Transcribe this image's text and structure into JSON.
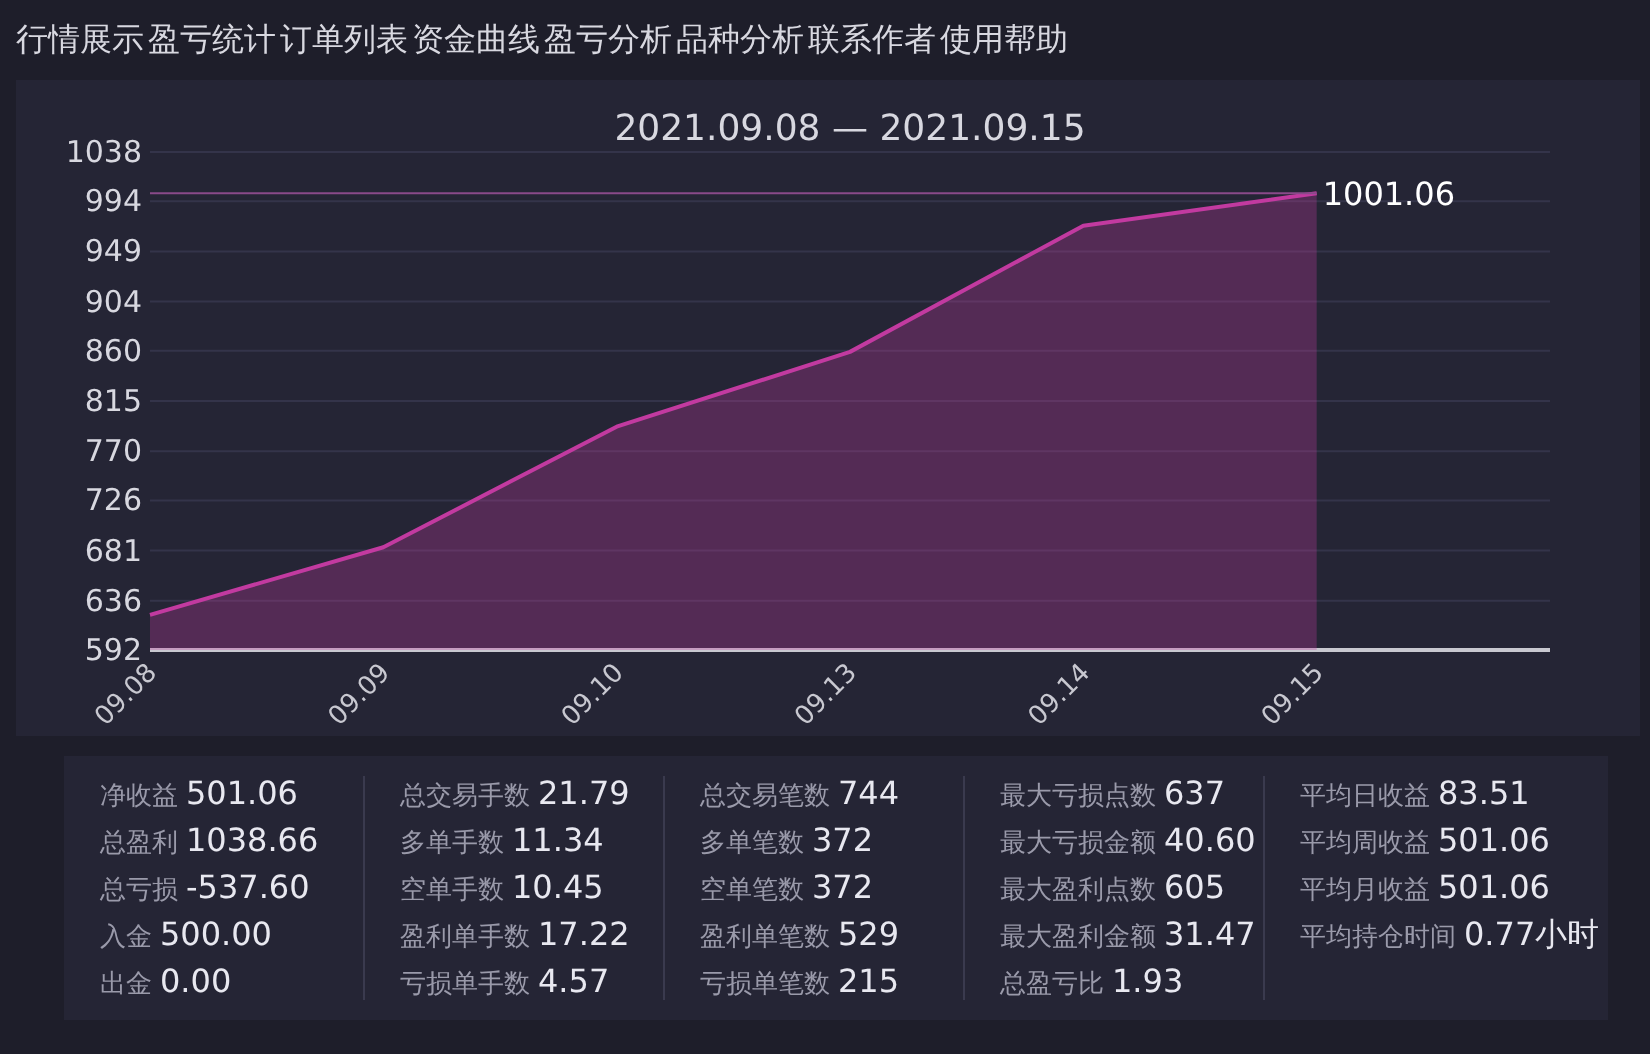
{
  "chart_data": [
    {
      "type": "area",
      "title": "2021.09.08 — 2021.09.15",
      "annotations": [
        "行情展示",
        "盈亏统计",
        "订单列表",
        "资金曲线",
        "盈亏分析",
        "品种分析",
        "联系作者",
        "使用帮助"
      ],
      "categories": [
        "09.08",
        "09.09",
        "09.10",
        "09.13",
        "09.14",
        "09.15"
      ],
      "values": [
        623.5,
        684,
        792,
        859,
        972,
        1001.06
      ],
      "color": "#c23aa0",
      "ylim": [
        592,
        1038
      ],
      "yticks": [
        592,
        636,
        681,
        726,
        770,
        815,
        860,
        904,
        949,
        994,
        1038
      ],
      "grid": "y",
      "ref_lines": [
        {
          "axis": "y",
          "value": 1001.06,
          "label": "1001.06",
          "color": "#8a4a8a"
        }
      ]
    },
    {
      "type": "other",
      "annotations": [
        "净收益",
        "501.06",
        "总盈利",
        "1038.66",
        "总亏损",
        "-537.60",
        "入金",
        "500.00",
        "出金",
        "0.00",
        "总交易手数",
        "21.79",
        "多单手数",
        "11.34",
        "空单手数",
        "10.45",
        "盈利单手数",
        "17.22",
        "亏损单手数",
        "4.57",
        "总交易笔数",
        "744",
        "多单笔数",
        "372",
        "空单笔数",
        "372",
        "盈利单笔数",
        "529",
        "亏损单笔数",
        "215",
        "最大亏损点数",
        "637",
        "最大亏损金额",
        "40.60",
        "最大盈利点数",
        "605",
        "最大盈利金额",
        "31.47",
        "总盈亏比",
        "1.93",
        "平均日收益",
        "83.51",
        "平均周收益",
        "501.06",
        "平均月收益",
        "501.06",
        "平均持仓时间",
        "0.77小时"
      ]
    }
  ]
}
